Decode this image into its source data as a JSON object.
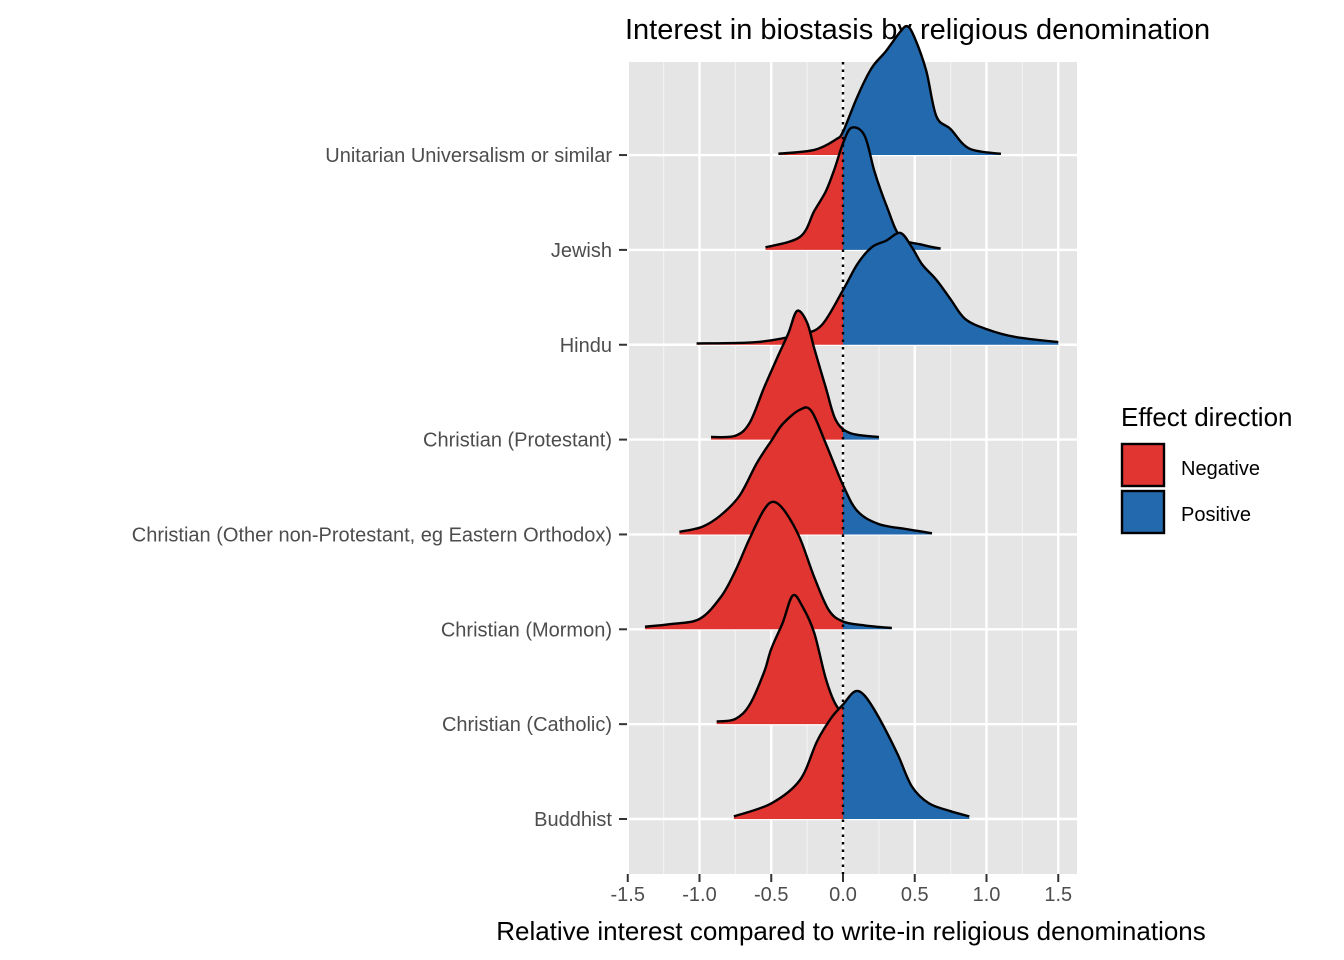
{
  "chart_data": {
    "type": "density_ridgeline",
    "title": "Interest in biostasis by religious denomination",
    "xlabel": "Relative interest compared to write-in religious denominations",
    "ylabel": "",
    "xlim": [
      -1.5,
      1.58
    ],
    "x_ticks": [
      -1.5,
      -1.0,
      -0.5,
      0.0,
      0.5,
      1.0,
      1.5
    ],
    "x_tick_labels": [
      "-1.5",
      "-1.0",
      "-0.5",
      "0.0",
      "0.5",
      "1.0",
      "1.5"
    ],
    "reference_line": {
      "x": 0,
      "style": "dotted"
    },
    "grid": true,
    "legend": {
      "title": "Effect direction",
      "position": "right",
      "entries": [
        {
          "label": "Negative",
          "color": "#e03530"
        },
        {
          "label": "Positive",
          "color": "#2369ad"
        }
      ]
    },
    "categories": [
      "Buddhist",
      "Christian (Catholic)",
      "Christian (Mormon)",
      "Christian (Other non-Protestant, eg Eastern Orthodox)",
      "Christian (Protestant)",
      "Hindu",
      "Jewish",
      "Unitarian Universalism or similar"
    ],
    "series": [
      {
        "name": "Buddhist",
        "density": [
          [
            -0.76,
            0.02
          ],
          [
            -0.5,
            0.12
          ],
          [
            -0.3,
            0.3
          ],
          [
            -0.18,
            0.6
          ],
          [
            -0.08,
            0.78
          ],
          [
            0.0,
            0.88
          ],
          [
            0.08,
            0.98
          ],
          [
            0.15,
            0.95
          ],
          [
            0.25,
            0.78
          ],
          [
            0.38,
            0.5
          ],
          [
            0.48,
            0.25
          ],
          [
            0.6,
            0.12
          ],
          [
            0.75,
            0.06
          ],
          [
            0.88,
            0.02
          ]
        ]
      },
      {
        "name": "Christian (Catholic)",
        "density": [
          [
            -0.88,
            0.02
          ],
          [
            -0.75,
            0.04
          ],
          [
            -0.65,
            0.15
          ],
          [
            -0.55,
            0.4
          ],
          [
            -0.5,
            0.58
          ],
          [
            -0.42,
            0.78
          ],
          [
            -0.35,
            0.99
          ],
          [
            -0.28,
            0.9
          ],
          [
            -0.2,
            0.7
          ],
          [
            -0.12,
            0.35
          ],
          [
            -0.05,
            0.15
          ],
          [
            0.03,
            0.06
          ],
          [
            0.15,
            0.03
          ],
          [
            0.25,
            0.02
          ]
        ]
      },
      {
        "name": "Christian (Mormon)",
        "density": [
          [
            -1.38,
            0.02
          ],
          [
            -1.2,
            0.04
          ],
          [
            -1.0,
            0.08
          ],
          [
            -0.85,
            0.25
          ],
          [
            -0.75,
            0.45
          ],
          [
            -0.65,
            0.7
          ],
          [
            -0.55,
            0.92
          ],
          [
            -0.48,
            0.98
          ],
          [
            -0.4,
            0.9
          ],
          [
            -0.3,
            0.7
          ],
          [
            -0.2,
            0.4
          ],
          [
            -0.1,
            0.15
          ],
          [
            0.0,
            0.06
          ],
          [
            0.15,
            0.03
          ],
          [
            0.34,
            0.01
          ]
        ]
      },
      {
        "name": "Christian (Other non-Protestant, eg Eastern Orthodox)",
        "density": [
          [
            -1.14,
            0.02
          ],
          [
            -0.98,
            0.06
          ],
          [
            -0.85,
            0.15
          ],
          [
            -0.72,
            0.3
          ],
          [
            -0.6,
            0.55
          ],
          [
            -0.5,
            0.72
          ],
          [
            -0.42,
            0.85
          ],
          [
            -0.3,
            0.96
          ],
          [
            -0.22,
            0.95
          ],
          [
            -0.12,
            0.7
          ],
          [
            0.0,
            0.38
          ],
          [
            0.1,
            0.18
          ],
          [
            0.25,
            0.08
          ],
          [
            0.45,
            0.04
          ],
          [
            0.62,
            0.01
          ]
        ]
      },
      {
        "name": "Christian (Protestant)",
        "density": [
          [
            -0.92,
            0.02
          ],
          [
            -0.75,
            0.03
          ],
          [
            -0.65,
            0.13
          ],
          [
            -0.55,
            0.4
          ],
          [
            -0.45,
            0.65
          ],
          [
            -0.38,
            0.82
          ],
          [
            -0.32,
            0.99
          ],
          [
            -0.25,
            0.9
          ],
          [
            -0.2,
            0.7
          ],
          [
            -0.12,
            0.4
          ],
          [
            -0.05,
            0.15
          ],
          [
            0.05,
            0.05
          ],
          [
            0.25,
            0.02
          ]
        ]
      },
      {
        "name": "Hindu",
        "density": [
          [
            -1.02,
            0.01
          ],
          [
            -0.6,
            0.02
          ],
          [
            -0.3,
            0.08
          ],
          [
            -0.15,
            0.15
          ],
          [
            0.0,
            0.42
          ],
          [
            0.1,
            0.62
          ],
          [
            0.2,
            0.75
          ],
          [
            0.3,
            0.8
          ],
          [
            0.4,
            0.86
          ],
          [
            0.48,
            0.75
          ],
          [
            0.55,
            0.62
          ],
          [
            0.65,
            0.5
          ],
          [
            0.75,
            0.35
          ],
          [
            0.85,
            0.2
          ],
          [
            1.0,
            0.12
          ],
          [
            1.2,
            0.06
          ],
          [
            1.5,
            0.02
          ]
        ]
      },
      {
        "name": "Jewish",
        "density": [
          [
            -0.54,
            0.02
          ],
          [
            -0.3,
            0.1
          ],
          [
            -0.2,
            0.3
          ],
          [
            -0.12,
            0.45
          ],
          [
            -0.06,
            0.62
          ],
          [
            0.0,
            0.82
          ],
          [
            0.06,
            0.94
          ],
          [
            0.15,
            0.88
          ],
          [
            0.22,
            0.6
          ],
          [
            0.3,
            0.35
          ],
          [
            0.4,
            0.1
          ],
          [
            0.55,
            0.04
          ],
          [
            0.68,
            0.01
          ]
        ]
      },
      {
        "name": "Unitarian Universalism or similar",
        "density": [
          [
            -0.45,
            0.01
          ],
          [
            -0.2,
            0.04
          ],
          [
            -0.05,
            0.12
          ],
          [
            0.0,
            0.18
          ],
          [
            0.1,
            0.45
          ],
          [
            0.2,
            0.67
          ],
          [
            0.3,
            0.8
          ],
          [
            0.4,
            0.95
          ],
          [
            0.45,
            0.99
          ],
          [
            0.5,
            0.9
          ],
          [
            0.58,
            0.65
          ],
          [
            0.65,
            0.3
          ],
          [
            0.75,
            0.2
          ],
          [
            0.88,
            0.05
          ],
          [
            1.1,
            0.01
          ]
        ]
      }
    ]
  }
}
